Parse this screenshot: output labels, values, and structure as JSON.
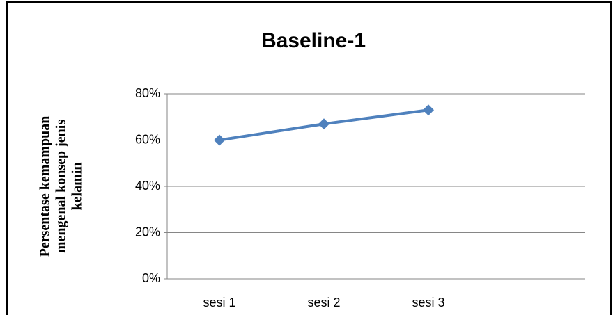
{
  "chart_data": {
    "type": "line",
    "title": "Baseline-1",
    "y_label": [
      "Persentase kemampuan",
      "mengenal konsep jenis",
      "kelamin"
    ],
    "categories": [
      "sesi 1",
      "sesi 2",
      "sesi 3",
      null
    ],
    "values": [
      60,
      67,
      73,
      null
    ],
    "color": "#4f81bd",
    "ylim": [
      0,
      80
    ],
    "yticks": [
      {
        "value": 0,
        "label": "0%"
      },
      {
        "value": 20,
        "label": "20%"
      },
      {
        "value": 40,
        "label": "40%"
      },
      {
        "value": 60,
        "label": "60%"
      },
      {
        "value": 80,
        "label": "80%"
      }
    ],
    "grid": true
  }
}
